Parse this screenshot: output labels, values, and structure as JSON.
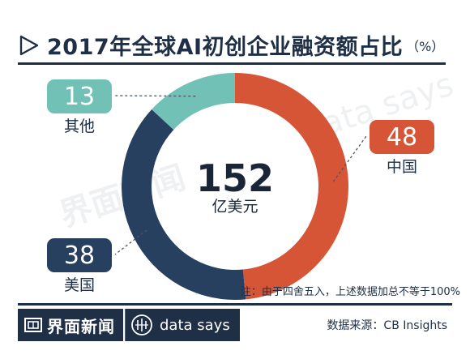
{
  "header": {
    "title": "2017年全球AI初创企业融资额占比",
    "unit": "（%）"
  },
  "chart_data": {
    "type": "pie",
    "style": "donut",
    "title": "2017年全球AI初创企业融资额占比",
    "unit": "%",
    "total_value": "152",
    "total_label": "亿美元",
    "slices": [
      {
        "label": "中国",
        "value": 48,
        "color": "#d65536"
      },
      {
        "label": "美国",
        "value": 38,
        "color": "#27405f"
      },
      {
        "label": "其他",
        "value": 13,
        "color": "#72c1b6"
      }
    ]
  },
  "note": "注：由于四舍五入，上述数据加总不等于100%",
  "footer": {
    "logo_text": "界面新闻",
    "data_says": "data says",
    "source": "数据来源：CB Insights"
  },
  "watermarks": {
    "left": "界面新闻",
    "right": "data says"
  }
}
